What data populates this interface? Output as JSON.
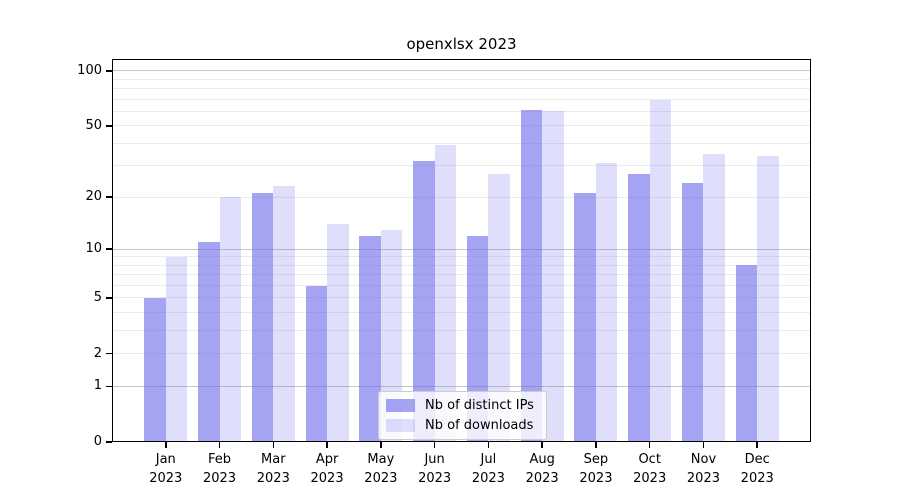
{
  "chart_data": {
    "type": "bar",
    "title": "openxlsx 2023",
    "categories": [
      "Jan",
      "Feb",
      "Mar",
      "Apr",
      "May",
      "Jun",
      "Jul",
      "Aug",
      "Sep",
      "Oct",
      "Nov",
      "Dec"
    ],
    "category_year": "2023",
    "series": [
      {
        "name": "Nb of distinct IPs",
        "slug": "distinct-ips",
        "color": "#6c6cec",
        "opacity": 0.62,
        "values": [
          5,
          11,
          21,
          6,
          12,
          32,
          12,
          61,
          21,
          27,
          24,
          8
        ]
      },
      {
        "name": "Nb of downloads",
        "slug": "downloads",
        "color": "#6c6cec",
        "opacity": 0.22,
        "values": [
          9,
          20,
          23,
          14,
          13,
          39,
          27,
          60,
          31,
          69,
          35,
          34
        ]
      }
    ],
    "y_axis": {
      "scale": "log1p",
      "labeled_ticks": [
        0,
        1,
        2,
        5,
        10,
        20,
        50,
        100
      ],
      "decade_gridlines": [
        1,
        10,
        100
      ],
      "minor_gridlines": [
        2,
        3,
        4,
        5,
        6,
        7,
        8,
        9,
        20,
        30,
        40,
        50,
        60,
        70,
        80,
        90
      ],
      "axis_max": 116
    },
    "legend_position": "bottom-center",
    "grid": true
  },
  "colors": {
    "bar": "#6c6cec",
    "decade_gridline": "#c6c6c6",
    "minor_gridline": "#ebebeb",
    "spine": "#000000",
    "legend_border": "#cccccc",
    "text": "#000000"
  }
}
